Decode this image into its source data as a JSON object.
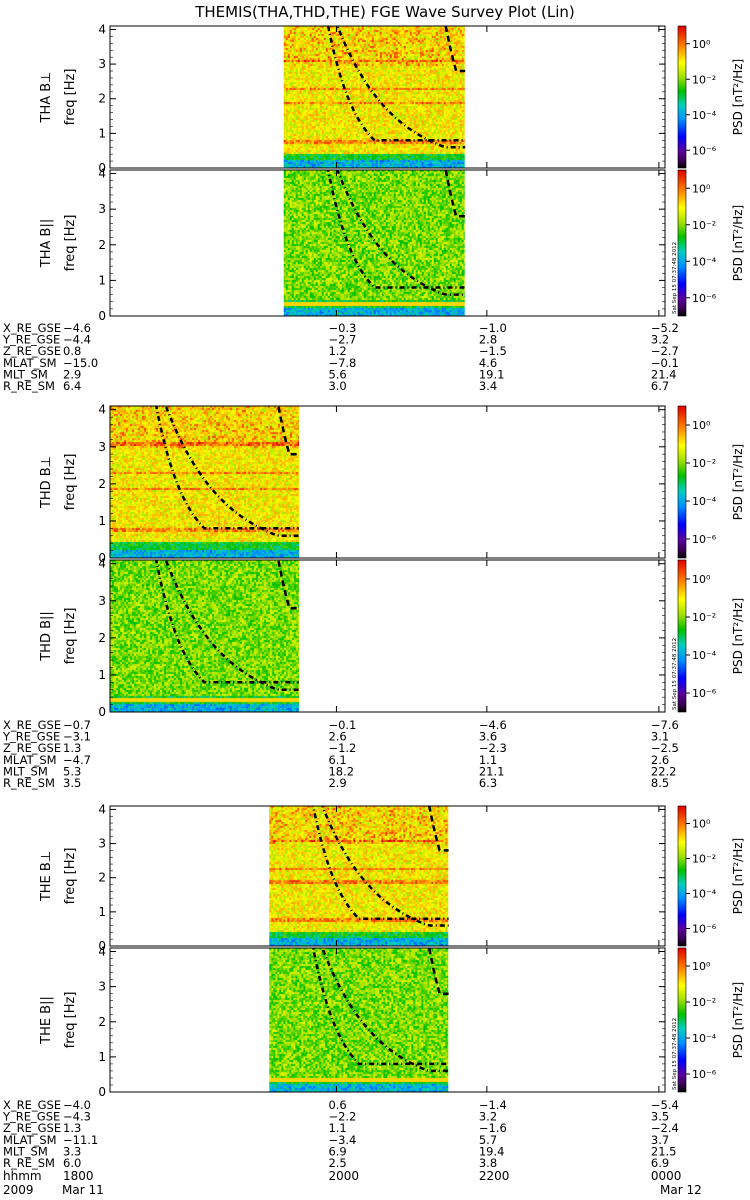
{
  "chart_data": {
    "type": "heatmap",
    "title": "THEMIS(THA,THD,THE) FGE Wave Survey Plot (Lin)",
    "colorbar": {
      "label_html": "PSD [nT²/Hz]",
      "tick_labels": [
        "10⁰",
        "10⁻²",
        "10⁻⁴",
        "10⁻⁶"
      ],
      "log_min": -7,
      "log_max": 1
    },
    "timestamp": "Sat Sep 15 07:37:48 2012",
    "y_ticks": [
      0,
      1,
      2,
      3,
      4
    ],
    "ylim": [
      0,
      4.1
    ],
    "x_time_labels": [
      "1800",
      "2000",
      "2200",
      "0000"
    ],
    "x_time_frac": [
      0.0,
      0.408,
      0.679,
      0.989
    ],
    "hhmm_label": "hhmm",
    "year_label": "2009",
    "date_start": "Mar 11",
    "date_end": "Mar 12",
    "panels": [
      {
        "ylabel": "THA B⊥",
        "yunit": "freq [Hz]",
        "data_x": [
          0.313,
          0.64
        ],
        "kind": "perp",
        "sat": "tha"
      },
      {
        "ylabel": "THA B||",
        "yunit": "freq [Hz]",
        "data_x": [
          0.313,
          0.64
        ],
        "kind": "par",
        "sat": "tha"
      },
      {
        "ylabel": "THD B⊥",
        "yunit": "freq [Hz]",
        "data_x": [
          0.0,
          0.34
        ],
        "kind": "perp",
        "sat": "thd"
      },
      {
        "ylabel": "THD B||",
        "yunit": "freq [Hz]",
        "data_x": [
          0.0,
          0.34
        ],
        "kind": "par",
        "sat": "thd"
      },
      {
        "ylabel": "THE B⊥",
        "yunit": "freq [Hz]",
        "data_x": [
          0.287,
          0.61
        ],
        "kind": "perp",
        "sat": "the"
      },
      {
        "ylabel": "THE B||",
        "yunit": "freq [Hz]",
        "data_x": [
          0.287,
          0.61
        ],
        "kind": "par",
        "sat": "the"
      }
    ],
    "ephemeris_names": [
      "X_RE_GSE",
      "Y_RE_GSE",
      "Z_RE_GSE",
      "MLAT_SM",
      "MLT_SM",
      "R_RE_SM"
    ],
    "ephemeris": [
      {
        "sat": "tha",
        "rows": [
          [
            "−4.6",
            "−0.3",
            "−1.0",
            "−5.2"
          ],
          [
            "−4.4",
            "−2.7",
            "2.8",
            "3.2"
          ],
          [
            "0.8",
            "1.2",
            "−1.5",
            "−2.7"
          ],
          [
            "−15.0",
            "−7.8",
            "4.6",
            "−0.1"
          ],
          [
            "2.9",
            "5.6",
            "19.1",
            "21.4"
          ],
          [
            "6.4",
            "3.0",
            "3.4",
            "6.7"
          ]
        ]
      },
      {
        "sat": "thd",
        "rows": [
          [
            "−0.7",
            "−0.1",
            "−4.6",
            "−7.6"
          ],
          [
            "−3.1",
            "2.6",
            "3.6",
            "3.1"
          ],
          [
            "1.3",
            "−1.2",
            "−2.3",
            "−2.5"
          ],
          [
            "−4.7",
            "6.1",
            "1.1",
            "2.6"
          ],
          [
            "5.3",
            "18.2",
            "21.1",
            "22.2"
          ],
          [
            "3.5",
            "2.9",
            "6.3",
            "8.5"
          ]
        ]
      },
      {
        "sat": "the",
        "rows": [
          [
            "−4.0",
            "0.6",
            "−1.4",
            "−5.4"
          ],
          [
            "−4.3",
            "−2.2",
            "3.2",
            "3.5"
          ],
          [
            "1.3",
            "1.1",
            "−1.6",
            "−2.4"
          ],
          [
            "−11.1",
            "−3.4",
            "5.7",
            "3.7"
          ],
          [
            "3.3",
            "6.9",
            "19.4",
            "21.5"
          ],
          [
            "6.0",
            "2.5",
            "3.8",
            "6.9"
          ]
        ]
      }
    ]
  }
}
